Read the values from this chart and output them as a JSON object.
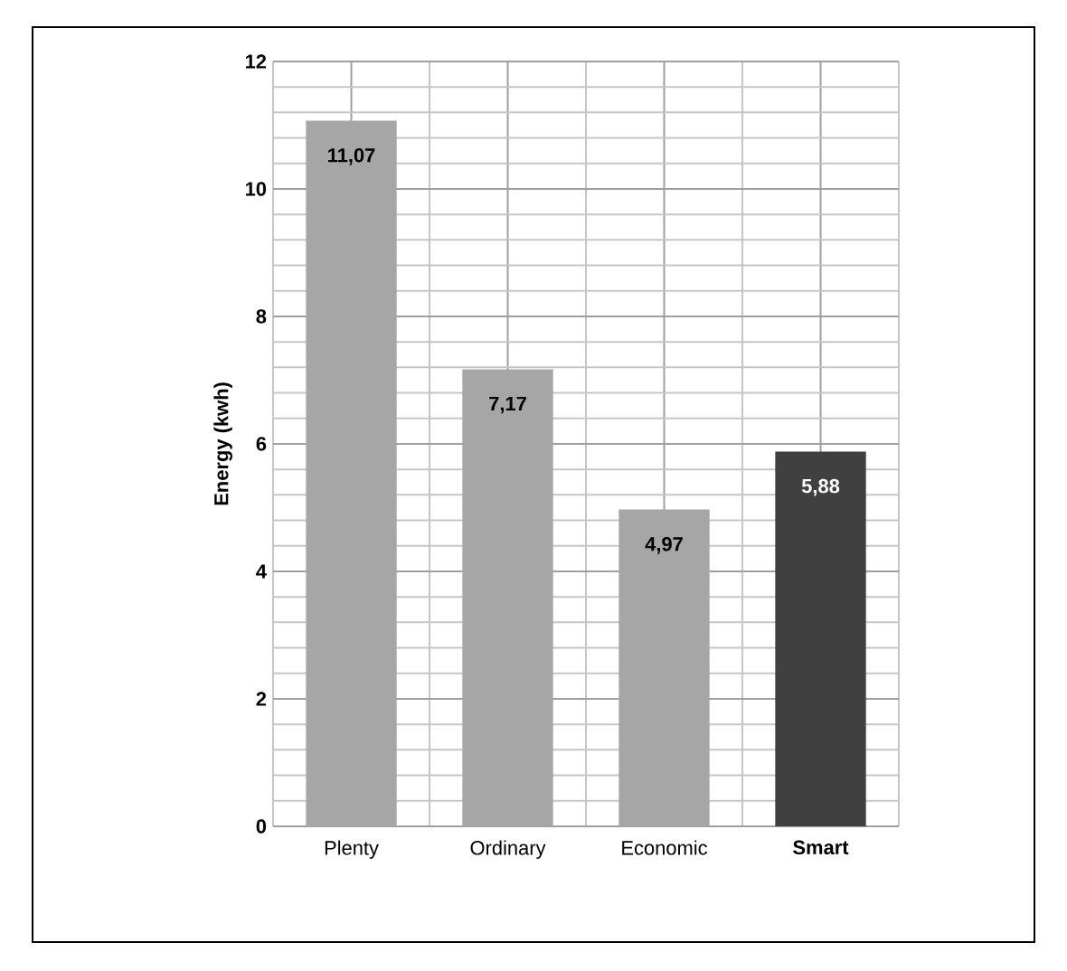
{
  "chart_data": {
    "type": "bar",
    "ylabel": "Energy (kwh)",
    "categories": [
      "Plenty",
      "Ordinary",
      "Economic",
      "**Smart**"
    ],
    "values": [
      11.07,
      7.17,
      4.97,
      5.88
    ],
    "colors": [
      "#a6a6a6",
      "#a6a6a6",
      "#a6a6a6",
      "#404040"
    ],
    "value_labels": [
      "11,07",
      "7,17",
      "4,97",
      "5,88"
    ],
    "ylim": [
      0,
      12
    ],
    "yticks": [
      0,
      2,
      4,
      6,
      8,
      10,
      12
    ],
    "grid": true
  }
}
